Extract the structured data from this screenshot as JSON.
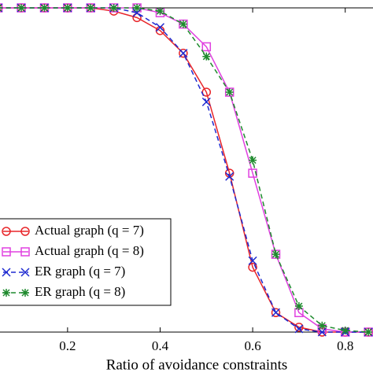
{
  "chart_data": {
    "type": "line",
    "xlabel": "Ratio of avoidance constraints",
    "x": [
      0.05,
      0.1,
      0.15,
      0.2,
      0.25,
      0.3,
      0.35,
      0.4,
      0.45,
      0.5,
      0.55,
      0.6,
      0.65,
      0.7,
      0.75,
      0.8,
      0.85
    ],
    "xlim": [
      0.054,
      0.86
    ],
    "xticks": [
      0.2,
      0.4,
      0.6,
      0.8
    ],
    "ylim": [
      0,
      1
    ],
    "legend": "lower left",
    "series": [
      {
        "name": "Actual graph (q = 7)",
        "color": "#e8262a",
        "marker": "circle",
        "dashed": false,
        "values": [
          1,
          1,
          1,
          1,
          1,
          0.99,
          0.97,
          0.93,
          0.86,
          0.74,
          0.49,
          0.2,
          0.06,
          0.015,
          0,
          0,
          0
        ]
      },
      {
        "name": "Actual graph (q = 8)",
        "color": "#e040e0",
        "marker": "square",
        "dashed": false,
        "values": [
          1,
          1,
          1,
          1,
          1,
          1,
          1,
          0.985,
          0.95,
          0.88,
          0.74,
          0.49,
          0.24,
          0.06,
          0.01,
          0,
          0
        ]
      },
      {
        "name": "ER graph (q = 7)",
        "color": "#1e2ad0",
        "marker": "x",
        "dashed": true,
        "values": [
          1,
          1,
          1,
          1,
          1,
          1,
          0.985,
          0.94,
          0.86,
          0.71,
          0.48,
          0.22,
          0.06,
          0.01,
          0,
          0,
          0
        ]
      },
      {
        "name": "ER graph (q = 8)",
        "color": "#1f8a2e",
        "marker": "star",
        "dashed": true,
        "values": [
          1,
          1,
          1,
          1,
          1,
          1,
          1,
          0.99,
          0.95,
          0.85,
          0.74,
          0.53,
          0.24,
          0.08,
          0.02,
          0.005,
          0
        ]
      }
    ]
  }
}
